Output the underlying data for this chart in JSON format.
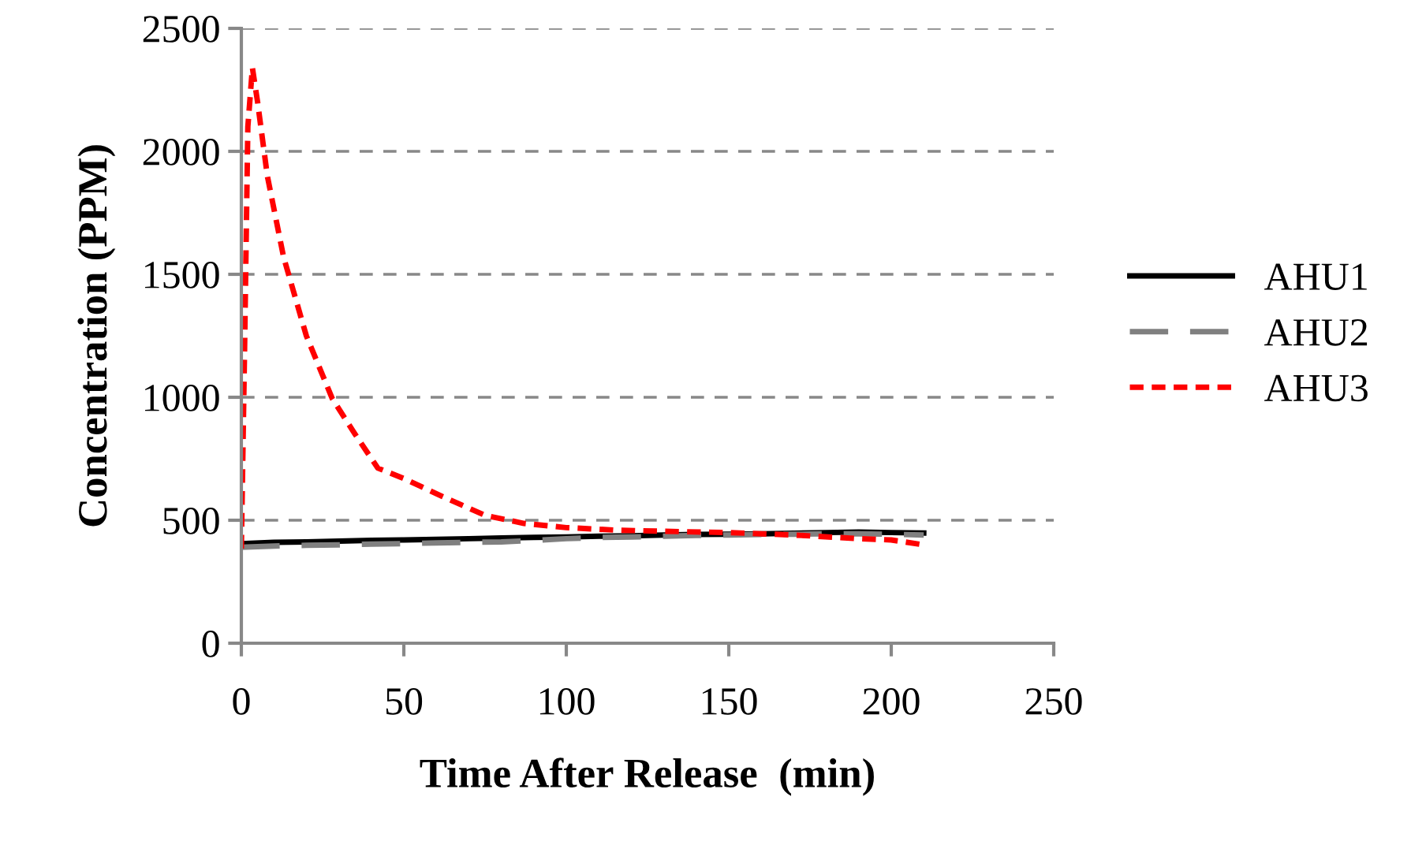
{
  "chart_data": {
    "type": "line",
    "xlabel": "Time After Release  (min)",
    "ylabel": "Concentration (PPM)",
    "xlim": [
      0,
      250
    ],
    "xticks": [
      0,
      50,
      100,
      150,
      200,
      250
    ],
    "ylim": [
      0,
      2500
    ],
    "yticks": [
      0,
      500,
      1000,
      1500,
      2000,
      2500
    ],
    "grid": "y",
    "legend": "right",
    "marker": "none",
    "series": [
      {
        "name": "AHU1",
        "color": "#000000",
        "line_style": "solid",
        "x": [
          0,
          10,
          20,
          30,
          40,
          50,
          60,
          70,
          80,
          90,
          100,
          110,
          120,
          130,
          140,
          150,
          160,
          170,
          180,
          190,
          200,
          210
        ],
        "values": [
          405,
          410,
          412,
          415,
          418,
          420,
          422,
          425,
          428,
          430,
          432,
          435,
          437,
          440,
          442,
          443,
          445,
          447,
          450,
          452,
          450,
          448
        ]
      },
      {
        "name": "AHU2",
        "color": "#808080",
        "line_style": "dashed",
        "x": [
          0,
          10,
          20,
          30,
          40,
          50,
          60,
          70,
          80,
          90,
          100,
          110,
          120,
          130,
          140,
          150,
          160,
          170,
          180,
          190,
          200,
          210
        ],
        "values": [
          390,
          395,
          398,
          400,
          403,
          405,
          408,
          410,
          412,
          418,
          425,
          430,
          432,
          435,
          438,
          440,
          442,
          443,
          445,
          445,
          443,
          440
        ]
      },
      {
        "name": "AHU3",
        "color": "#ff0000",
        "line_style": "dotted",
        "x": [
          0,
          1,
          2,
          3.4,
          5,
          8,
          13,
          20,
          28,
          35,
          42,
          50,
          62,
          75,
          87,
          100,
          115,
          130,
          150,
          170,
          190,
          200,
          210
        ],
        "values": [
          385,
          1200,
          2100,
          2340,
          2200,
          1900,
          1570,
          1250,
          994,
          850,
          712,
          670,
          596,
          520,
          487,
          470,
          460,
          455,
          450,
          440,
          425,
          420,
          400
        ]
      }
    ]
  }
}
